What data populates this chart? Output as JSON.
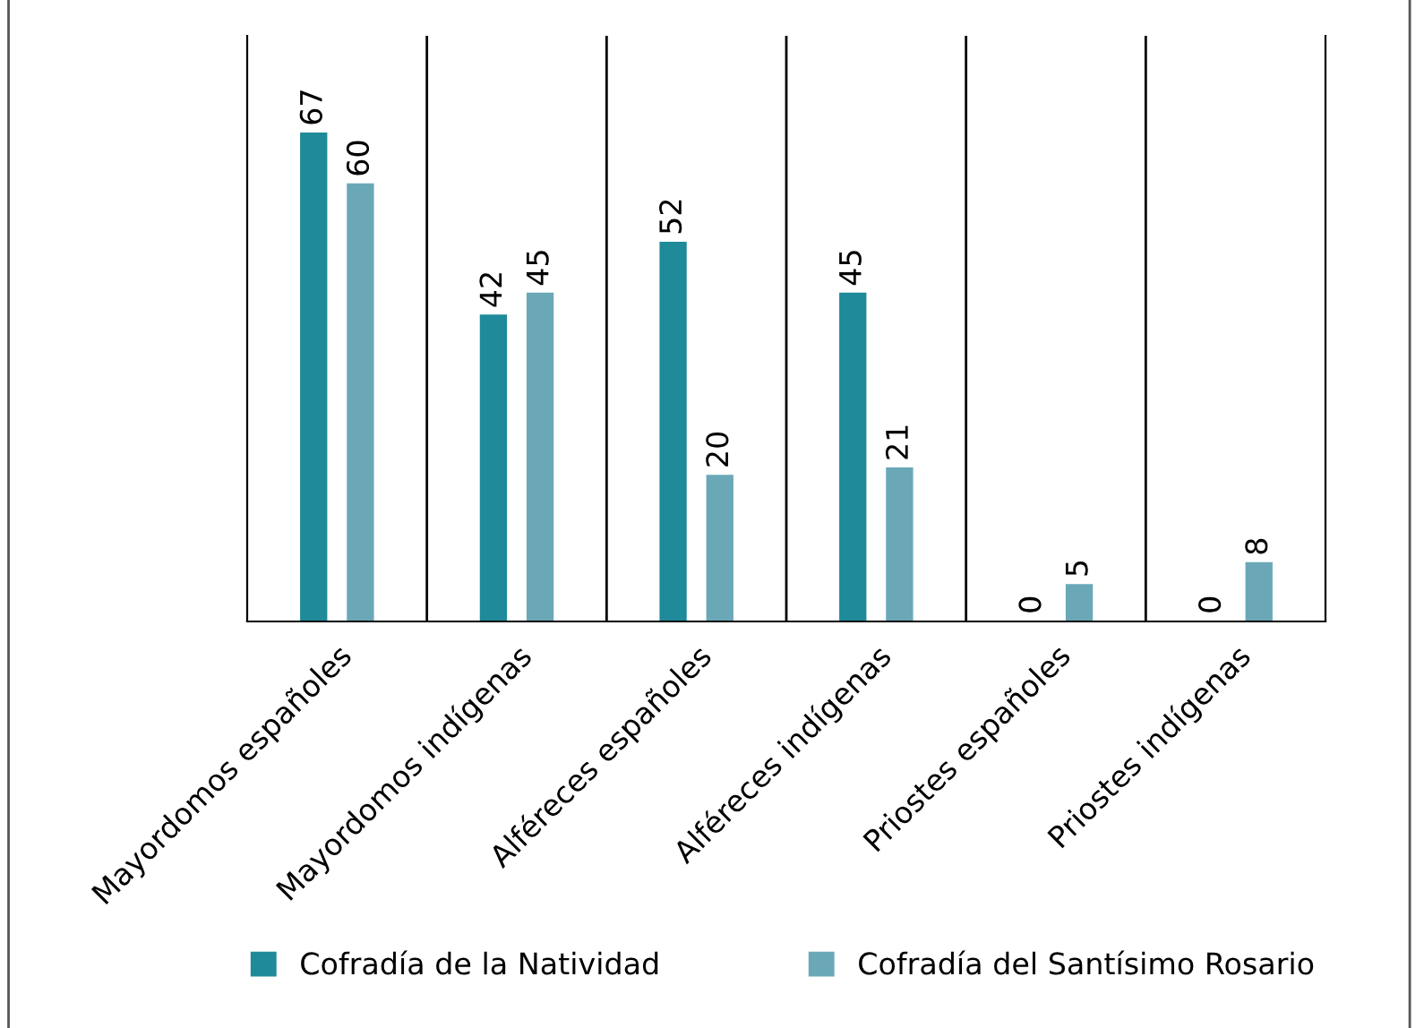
{
  "chart_data": {
    "type": "bar",
    "categories": [
      "Mayordomos españoles",
      "Mayordomos indígenas",
      "Alféreces españoles",
      "Alféreces indígenas",
      "Priostes españoles",
      "Priostes indígenas"
    ],
    "series": [
      {
        "name": "Cofradía de la Natividad",
        "color": "#1f8a99",
        "values": [
          67,
          42,
          52,
          45,
          0,
          0
        ]
      },
      {
        "name": "Cofradía del Santísimo Rosario",
        "color": "#6aa8b8",
        "values": [
          60,
          45,
          20,
          21,
          5,
          8
        ]
      }
    ],
    "data_labels": true,
    "grid": "x",
    "legend": "bottom"
  }
}
